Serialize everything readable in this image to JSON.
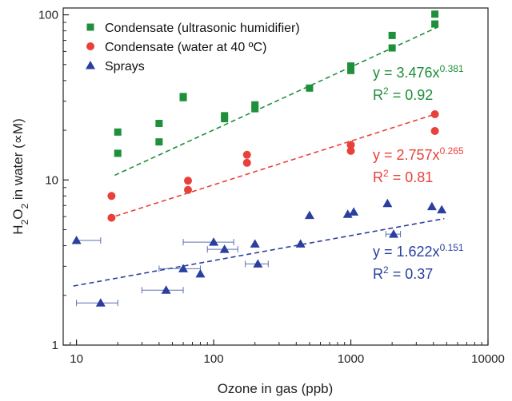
{
  "chart_data": {
    "type": "scatter",
    "xscale": "log",
    "yscale": "log",
    "xlim": [
      8,
      10000
    ],
    "ylim": [
      1,
      110
    ],
    "x_ticks": [
      {
        "value": 10,
        "label": "10"
      },
      {
        "value": 100,
        "label": "100"
      },
      {
        "value": 1000,
        "label": "1000"
      },
      {
        "value": 10000,
        "label": "10000"
      }
    ],
    "y_ticks": [
      {
        "value": 1,
        "label": "1"
      },
      {
        "value": 10,
        "label": "10"
      },
      {
        "value": 100,
        "label": "100"
      }
    ],
    "xlabel": "Ozone in gas (ppb)",
    "ylabel": {
      "main": "H",
      "sub1": "2",
      "mid": "O",
      "sub2": "2",
      "rest": " in water (∝M)"
    },
    "legend_position": "top-left",
    "series": [
      {
        "name": "Condensate (ultrasonic humidifier)",
        "marker": "square",
        "color": "#1e8f3a",
        "points": [
          {
            "x": 20,
            "y": 19.5
          },
          {
            "x": 20,
            "y": 14.5
          },
          {
            "x": 40,
            "y": 22
          },
          {
            "x": 40,
            "y": 17
          },
          {
            "x": 60,
            "y": 31.5
          },
          {
            "x": 60,
            "y": 32
          },
          {
            "x": 120,
            "y": 24.5
          },
          {
            "x": 120,
            "y": 23.5
          },
          {
            "x": 200,
            "y": 28.5
          },
          {
            "x": 200,
            "y": 27
          },
          {
            "x": 500,
            "y": 36
          },
          {
            "x": 1000,
            "y": 49
          },
          {
            "x": 1000,
            "y": 46
          },
          {
            "x": 2000,
            "y": 75
          },
          {
            "x": 2000,
            "y": 63
          },
          {
            "x": 4100,
            "y": 101
          },
          {
            "x": 4100,
            "y": 88
          }
        ],
        "fit": {
          "label": "y = 3.476x",
          "exponent": "0.381",
          "r2_label": "R",
          "r2_sup": "2",
          "r2_value": " = 0.92",
          "a": 3.476,
          "b": 0.381,
          "x_range": [
            19,
            4300
          ]
        }
      },
      {
        "name": "Condensate (water at 40 ºC)",
        "marker": "circle",
        "color": "#e8413a",
        "points": [
          {
            "x": 18,
            "y": 8
          },
          {
            "x": 18,
            "y": 5.9
          },
          {
            "x": 65,
            "y": 9.9
          },
          {
            "x": 65,
            "y": 8.7
          },
          {
            "x": 175,
            "y": 14.2
          },
          {
            "x": 175,
            "y": 12.7
          },
          {
            "x": 1000,
            "y": 16.3
          },
          {
            "x": 1000,
            "y": 15
          },
          {
            "x": 4100,
            "y": 25
          },
          {
            "x": 4100,
            "y": 19.8
          }
        ],
        "fit": {
          "label": "y = 2.757x",
          "exponent": "0.265",
          "r2_label": "R",
          "r2_sup": "2",
          "r2_value": " = 0.81",
          "a": 2.757,
          "b": 0.265,
          "x_range": [
            17,
            4300
          ]
        }
      },
      {
        "name": "Sprays",
        "marker": "triangle",
        "color": "#2a3f9e",
        "points": [
          {
            "x": 10,
            "y": 4.3,
            "xerr": [
              10,
              15
            ]
          },
          {
            "x": 15,
            "y": 1.8,
            "xerr": [
              10,
              20
            ]
          },
          {
            "x": 45,
            "y": 2.15,
            "xerr": [
              30,
              60
            ]
          },
          {
            "x": 60,
            "y": 2.9,
            "xerr": [
              40,
              80
            ]
          },
          {
            "x": 80,
            "y": 2.7
          },
          {
            "x": 100,
            "y": 4.2,
            "xerr": [
              60,
              140
            ]
          },
          {
            "x": 120,
            "y": 3.8,
            "xerr": [
              90,
              150
            ]
          },
          {
            "x": 200,
            "y": 4.1
          },
          {
            "x": 210,
            "y": 3.1,
            "xerr": [
              170,
              250
            ]
          },
          {
            "x": 430,
            "y": 4.1
          },
          {
            "x": 500,
            "y": 6.1
          },
          {
            "x": 950,
            "y": 6.2
          },
          {
            "x": 1050,
            "y": 6.4
          },
          {
            "x": 1850,
            "y": 7.2
          },
          {
            "x": 2050,
            "y": 4.7,
            "xerr": [
              1800,
              2300
            ]
          },
          {
            "x": 3900,
            "y": 6.9
          },
          {
            "x": 4600,
            "y": 6.6
          }
        ],
        "fit": {
          "label": "y = 1.622x",
          "exponent": "0.151",
          "r2_label": "R",
          "r2_sup": "2",
          "r2_value": " = 0.37",
          "a": 1.622,
          "b": 0.151,
          "x_range": [
            9.5,
            4800
          ]
        }
      }
    ]
  }
}
